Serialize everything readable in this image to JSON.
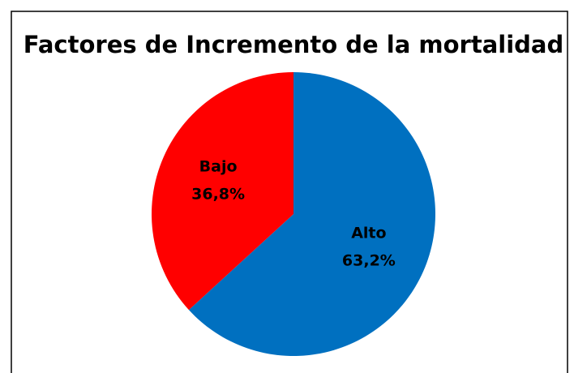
{
  "chart_data": {
    "type": "pie",
    "title": "Factores de Incremento de la mortalidad",
    "categories": [
      "Alto",
      "Bajo"
    ],
    "values": [
      63.2,
      36.8
    ],
    "value_labels": [
      "63,2%",
      "36,8%"
    ],
    "colors": [
      "#0070c0",
      "#ff0000"
    ]
  }
}
